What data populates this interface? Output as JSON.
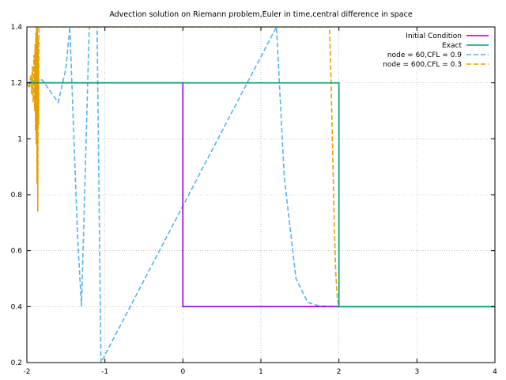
{
  "chart_data": {
    "type": "line",
    "title": "Advection solution on Riemann problem,Euler in time,central difference in space",
    "xlabel": "",
    "ylabel": "",
    "xlim": [
      -2,
      4
    ],
    "ylim": [
      0.2,
      1.4
    ],
    "x_ticks": [
      -2,
      -1,
      0,
      1,
      2,
      3,
      4
    ],
    "y_ticks": [
      0.2,
      0.4,
      0.6,
      0.8,
      1,
      1.2,
      1.4
    ],
    "x_tick_labels": [
      "-2",
      "-1",
      "0",
      "1",
      "2",
      "3",
      "4"
    ],
    "y_tick_labels": [
      "0.2",
      "0.4",
      "0.6",
      "0.8",
      "1",
      "1.2",
      "1.4"
    ],
    "grid": true,
    "legend_position": "top-right",
    "series": [
      {
        "name": "Initial Condition",
        "color": "#9400d3",
        "dash": "solid",
        "x": [
          -2,
          0,
          0,
          4
        ],
        "y": [
          1.2,
          1.2,
          0.4,
          0.4
        ]
      },
      {
        "name": "Exact",
        "color": "#009e73",
        "dash": "solid",
        "x": [
          -2,
          2,
          2,
          4
        ],
        "y": [
          1.2,
          1.2,
          0.4,
          0.4
        ]
      },
      {
        "name": "node = 60,CFL = 0.9",
        "color": "#56b4e9",
        "dash": "dashed",
        "x": [
          -2,
          -1.9,
          -1.8,
          -1.7,
          -1.6,
          -1.5,
          -1.45,
          -1.35,
          -1.3,
          -1.2,
          -1.1,
          -1.05,
          1.2,
          1.3,
          1.45,
          1.6,
          1.75,
          1.9,
          2.0,
          2.1,
          2.5,
          3,
          4
        ],
        "y": [
          1.2,
          1.21,
          1.21,
          1.17,
          1.13,
          1.25,
          1.4,
          0.65,
          0.4,
          1.4,
          1.4,
          0.2,
          1.4,
          0.86,
          0.5,
          0.415,
          0.402,
          0.401,
          0.4,
          0.4,
          0.4,
          0.4,
          0.4
        ]
      },
      {
        "name": "node = 600,CFL = 0.3",
        "color": "#e69f00",
        "dash": "dashed",
        "x": [
          -2,
          -1.97,
          -1.95,
          -1.94,
          -1.93,
          -1.92,
          -1.91,
          -1.9,
          -1.895,
          -1.89,
          -1.885,
          -1.88,
          -1.875,
          -1.87,
          -1.865,
          -1.86,
          -1.855,
          -1.85,
          -1.845,
          -1.84,
          1.88,
          1.9,
          1.92,
          1.94,
          1.96,
          1.98,
          2.0,
          2.05,
          2.5,
          3,
          4
        ],
        "y": [
          1.2,
          1.18,
          1.23,
          1.16,
          1.26,
          1.13,
          1.3,
          1.1,
          1.34,
          1.03,
          1.38,
          0.98,
          1.4,
          0.84,
          1.4,
          0.74,
          1.36,
          1.05,
          1.4,
          1.4,
          1.4,
          1.2,
          0.95,
          0.7,
          0.52,
          0.43,
          0.4,
          0.4,
          0.4,
          0.4,
          0.4
        ]
      }
    ]
  }
}
